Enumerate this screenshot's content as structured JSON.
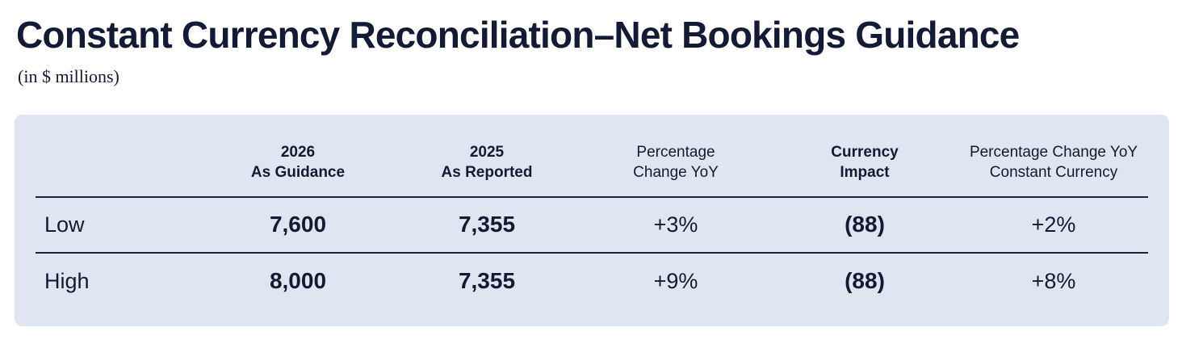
{
  "page": {
    "title": "Constant Currency Reconciliation–Net Bookings Guidance",
    "subtitle": "(in $ millions)"
  },
  "table": {
    "columns": [
      {
        "line1": "2026",
        "line2": "As Guidance",
        "emphasis": "bold"
      },
      {
        "line1": "2025",
        "line2": "As Reported",
        "emphasis": "bold"
      },
      {
        "line1": "Percentage",
        "line2": "Change YoY",
        "emphasis": "regular"
      },
      {
        "line1": "Currency",
        "line2": "Impact",
        "emphasis": "bold"
      },
      {
        "line1": "Percentage Change YoY",
        "line2": "Constant Currency",
        "emphasis": "regular"
      }
    ],
    "rows": [
      {
        "label": "Low",
        "values": {
          "guidance_2026": "7,600",
          "reported_2025": "7,355",
          "pct_change_yoy": "+3%",
          "currency_impact": "(88)",
          "pct_change_yoy_cc": "+2%"
        }
      },
      {
        "label": "High",
        "values": {
          "guidance_2026": "8,000",
          "reported_2025": "7,355",
          "pct_change_yoy": "+9%",
          "currency_impact": "(88)",
          "pct_change_yoy_cc": "+8%"
        }
      }
    ]
  },
  "colors": {
    "text": "#131a33",
    "card_background": "#dfe5f1",
    "rule": "#1c2440",
    "page_background": "#ffffff"
  }
}
